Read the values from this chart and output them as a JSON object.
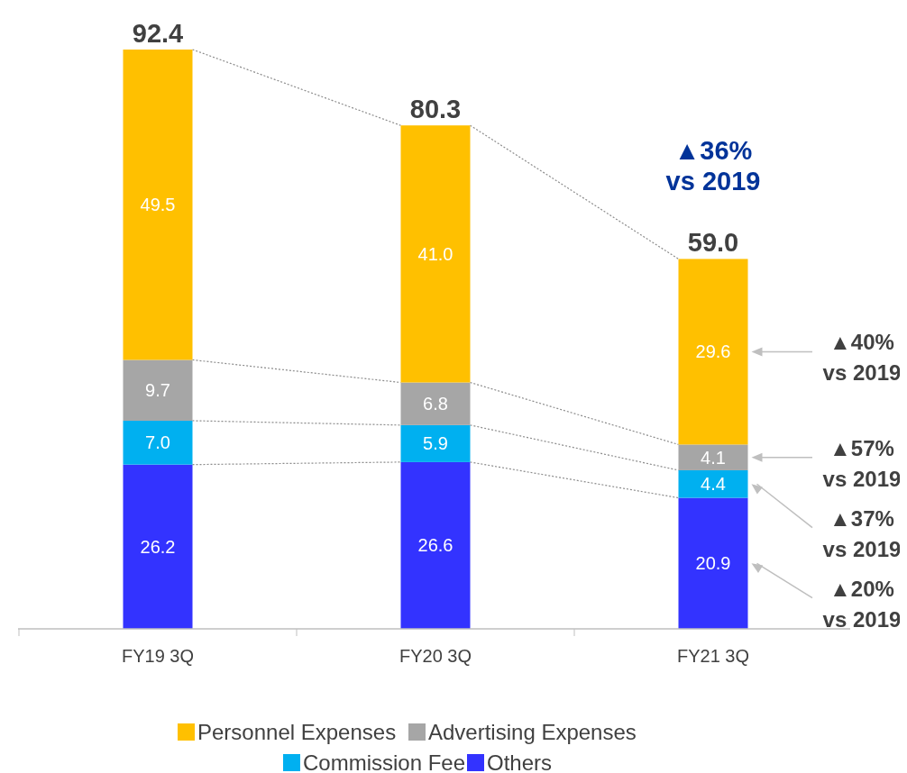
{
  "chart_data": {
    "type": "bar",
    "stacked": true,
    "legend": "bottom",
    "categories": [
      "FY19 3Q",
      "FY20 3Q",
      "FY21 3Q"
    ],
    "series": [
      {
        "name": "Others",
        "color": "#3333ff",
        "values": [
          26.2,
          26.6,
          20.9
        ],
        "value_labels": [
          "26.2",
          "26.6",
          "20.9"
        ]
      },
      {
        "name": "Commission Fee",
        "color": "#00b0f0",
        "values": [
          7.0,
          5.9,
          4.4
        ],
        "value_labels": [
          "7.0",
          "5.9",
          "4.4"
        ]
      },
      {
        "name": "Advertising Expenses",
        "color": "#a6a6a6",
        "values": [
          9.7,
          6.8,
          4.1
        ],
        "value_labels": [
          "9.7",
          "6.8",
          "4.1"
        ]
      },
      {
        "name": "Personnel Expenses",
        "color": "#ffc000",
        "values": [
          49.5,
          41.0,
          29.6
        ],
        "value_labels": [
          "49.5",
          "41.0",
          "29.6"
        ]
      }
    ],
    "totals": [
      "92.4",
      "80.3",
      "59.0"
    ],
    "annotations": [
      {
        "text": "▲36%\nvs 2019",
        "x": "FY21 3Q",
        "y": 59.0
      },
      "▲40%\nvs 2019",
      "▲57%\nvs 2019",
      "▲37%\nvs 2019",
      "▲20%\nvs 2019"
    ]
  }
}
